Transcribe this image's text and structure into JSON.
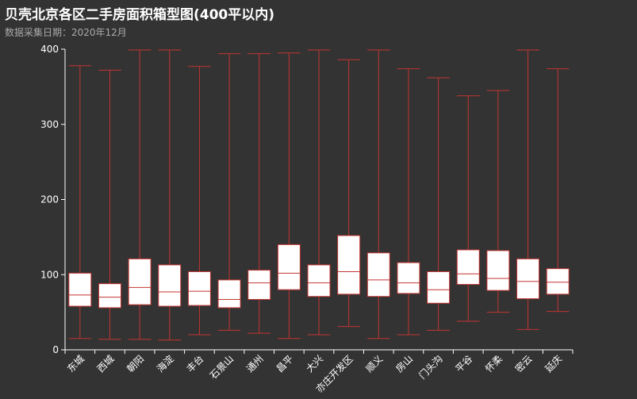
{
  "header": {
    "title": "贝壳北京各区二手房面积箱型图(400平以内)",
    "subtitle": "数据采集日期：2020年12月"
  },
  "colors": {
    "background": "#333333",
    "box_fill": "#ffffff",
    "box_stroke": "#c23531",
    "axis": "#ffffff"
  },
  "chart_data": {
    "type": "boxplot",
    "title": "贝壳北京各区二手房面积箱型图(400平以内)",
    "subtitle": "数据采集日期：2020年12月",
    "xlabel": "",
    "ylabel": "",
    "ylim": [
      0,
      400
    ],
    "yticks": [
      0,
      100,
      200,
      300,
      400
    ],
    "grid": false,
    "categories": [
      "东城",
      "西城",
      "朝阳",
      "海淀",
      "丰台",
      "石景山",
      "通州",
      "昌平",
      "大兴",
      "亦庄开发区",
      "顺义",
      "房山",
      "门头沟",
      "平谷",
      "怀柔",
      "密云",
      "延庆"
    ],
    "boxes": [
      {
        "min": 15,
        "q1": 58,
        "median": 73,
        "q3": 102,
        "max": 378
      },
      {
        "min": 14,
        "q1": 56,
        "median": 70,
        "q3": 88,
        "max": 372
      },
      {
        "min": 14,
        "q1": 60,
        "median": 83,
        "q3": 121,
        "max": 399
      },
      {
        "min": 13,
        "q1": 58,
        "median": 77,
        "q3": 113,
        "max": 399
      },
      {
        "min": 20,
        "q1": 59,
        "median": 78,
        "q3": 104,
        "max": 377
      },
      {
        "min": 26,
        "q1": 56,
        "median": 67,
        "q3": 93,
        "max": 394
      },
      {
        "min": 22,
        "q1": 67,
        "median": 89,
        "q3": 106,
        "max": 394
      },
      {
        "min": 15,
        "q1": 80,
        "median": 102,
        "q3": 140,
        "max": 395
      },
      {
        "min": 20,
        "q1": 71,
        "median": 89,
        "q3": 113,
        "max": 399
      },
      {
        "min": 31,
        "q1": 74,
        "median": 104,
        "q3": 152,
        "max": 386
      },
      {
        "min": 15,
        "q1": 71,
        "median": 93,
        "q3": 129,
        "max": 399
      },
      {
        "min": 20,
        "q1": 75,
        "median": 89,
        "q3": 116,
        "max": 374
      },
      {
        "min": 26,
        "q1": 62,
        "median": 80,
        "q3": 104,
        "max": 362
      },
      {
        "min": 38,
        "q1": 87,
        "median": 101,
        "q3": 133,
        "max": 338
      },
      {
        "min": 50,
        "q1": 79,
        "median": 95,
        "q3": 132,
        "max": 345
      },
      {
        "min": 27,
        "q1": 68,
        "median": 91,
        "q3": 121,
        "max": 399
      },
      {
        "min": 51,
        "q1": 74,
        "median": 90,
        "q3": 108,
        "max": 374
      }
    ]
  }
}
